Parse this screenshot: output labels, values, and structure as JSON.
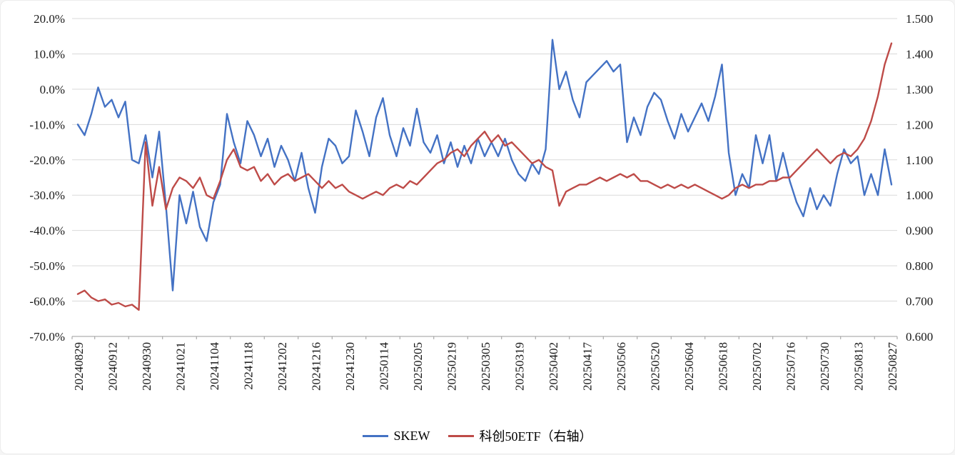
{
  "chart_data": {
    "type": "line",
    "title": "",
    "grid": true,
    "legend_position": "bottom",
    "points_per_tick": 5,
    "x_tick_labels": [
      "20240829",
      "20240912",
      "20240930",
      "20241021",
      "20241104",
      "20241118",
      "20241202",
      "20241216",
      "20241230",
      "20250114",
      "20250205",
      "20250219",
      "20250305",
      "20250319",
      "20250402",
      "20250417",
      "20250506",
      "20250520",
      "20250604",
      "20250618",
      "20250702",
      "20250716",
      "20250730",
      "20250813",
      "20250827"
    ],
    "left_axis": {
      "min": -70,
      "max": 20,
      "step": 10,
      "format": "percent",
      "tick_labels": [
        "20.0%",
        "10.0%",
        "0.0%",
        "-10.0%",
        "-20.0%",
        "-30.0%",
        "-40.0%",
        "-50.0%",
        "-60.0%",
        "-70.0%"
      ]
    },
    "right_axis": {
      "min": 0.6,
      "max": 1.5,
      "step": 0.1,
      "format": "decimal3",
      "tick_labels": [
        "1.500",
        "1.400",
        "1.300",
        "1.200",
        "1.100",
        "1.000",
        "0.900",
        "0.800",
        "0.700",
        "0.600"
      ]
    },
    "colors": {
      "grid": "#d9d9d9",
      "axis": "#9b9b9b",
      "skew": "#4472C4",
      "etf": "#BE4B48"
    },
    "series": [
      {
        "name": "SKEW",
        "axis": "left",
        "color": "#4472C4",
        "values": [
          -10,
          -13,
          -7,
          0.5,
          -5,
          -3,
          -8,
          -3.5,
          -20,
          -21,
          -13,
          -25,
          -12,
          -33,
          -57,
          -30,
          -38,
          -29,
          -39,
          -43,
          -32,
          -27,
          -7,
          -15,
          -21,
          -9,
          -13,
          -19,
          -14,
          -22,
          -16,
          -20,
          -26,
          -18,
          -28,
          -35,
          -22,
          -14,
          -16,
          -21,
          -19,
          -6,
          -12,
          -19,
          -8,
          -2.5,
          -13,
          -19,
          -11,
          -16,
          -5.5,
          -15,
          -18,
          -13,
          -21,
          -15,
          -22,
          -16,
          -21,
          -14,
          -19,
          -15,
          -19,
          -14,
          -20,
          -24,
          -26,
          -21,
          -24,
          -17,
          14,
          0,
          5,
          -3,
          -8,
          2,
          4,
          6,
          8,
          5,
          7,
          -15,
          -8,
          -13,
          -5,
          -1,
          -3,
          -9,
          -14,
          -7,
          -12,
          -8,
          -4,
          -9,
          -2,
          7,
          -18,
          -30,
          -24,
          -28,
          -13,
          -21,
          -13,
          -26,
          -18,
          -26,
          -32,
          -36,
          -28,
          -34,
          -30,
          -33,
          -24,
          -17,
          -21,
          -19,
          -30,
          -24,
          -30,
          -17,
          -27
        ]
      },
      {
        "name": "科创50ETF（右轴）",
        "axis": "right",
        "color": "#BE4B48",
        "values": [
          0.72,
          0.73,
          0.71,
          0.7,
          0.705,
          0.69,
          0.695,
          0.685,
          0.69,
          0.675,
          1.15,
          0.97,
          1.08,
          0.96,
          1.02,
          1.05,
          1.04,
          1.02,
          1.05,
          1.0,
          0.99,
          1.04,
          1.1,
          1.13,
          1.08,
          1.07,
          1.08,
          1.04,
          1.06,
          1.03,
          1.05,
          1.06,
          1.04,
          1.05,
          1.06,
          1.04,
          1.02,
          1.04,
          1.02,
          1.03,
          1.01,
          1.0,
          0.99,
          1.0,
          1.01,
          1.0,
          1.02,
          1.03,
          1.02,
          1.04,
          1.03,
          1.05,
          1.07,
          1.09,
          1.1,
          1.12,
          1.13,
          1.11,
          1.14,
          1.16,
          1.18,
          1.15,
          1.17,
          1.14,
          1.15,
          1.13,
          1.11,
          1.09,
          1.1,
          1.08,
          1.07,
          0.97,
          1.01,
          1.02,
          1.03,
          1.03,
          1.04,
          1.05,
          1.04,
          1.05,
          1.06,
          1.05,
          1.06,
          1.04,
          1.04,
          1.03,
          1.02,
          1.03,
          1.02,
          1.03,
          1.02,
          1.03,
          1.02,
          1.01,
          1.0,
          0.99,
          1.0,
          1.02,
          1.03,
          1.02,
          1.03,
          1.03,
          1.04,
          1.04,
          1.05,
          1.05,
          1.07,
          1.09,
          1.11,
          1.13,
          1.11,
          1.09,
          1.11,
          1.12,
          1.11,
          1.13,
          1.16,
          1.21,
          1.28,
          1.37,
          1.43
        ]
      }
    ]
  }
}
